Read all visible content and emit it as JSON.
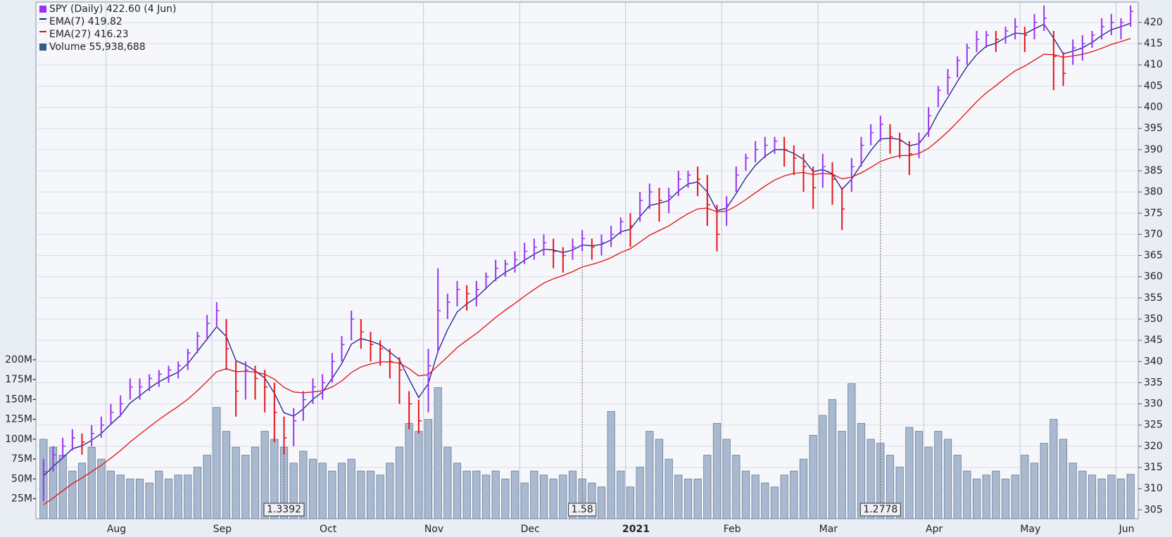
{
  "chart_data": {
    "type": "ohlc",
    "legend": [
      "SPY (Daily) 422.60 (4 Jun)",
      "EMA(7) 419.82",
      "EMA(27) 416.23",
      "Volume 55,938,688"
    ],
    "categories": [
      null,
      null,
      null,
      null,
      null,
      null,
      null,
      "Aug",
      null,
      null,
      null,
      null,
      null,
      null,
      null,
      null,
      null,
      null,
      "Sep",
      null,
      null,
      null,
      null,
      null,
      null,
      null,
      null,
      null,
      null,
      "Oct",
      null,
      null,
      null,
      null,
      null,
      null,
      null,
      null,
      null,
      null,
      "Nov",
      null,
      null,
      null,
      null,
      null,
      null,
      null,
      null,
      null,
      "Dec",
      null,
      null,
      null,
      null,
      null,
      null,
      null,
      null,
      null,
      null,
      "2021",
      null,
      null,
      null,
      null,
      null,
      null,
      null,
      null,
      null,
      "Feb",
      null,
      null,
      null,
      null,
      null,
      null,
      null,
      null,
      null,
      "Mar",
      null,
      null,
      null,
      null,
      null,
      null,
      null,
      null,
      null,
      null,
      "Apr",
      null,
      null,
      null,
      null,
      null,
      null,
      null,
      null,
      null,
      "May",
      null,
      null,
      null,
      null,
      null,
      null,
      null,
      null,
      null,
      "Jun",
      null
    ],
    "high": [
      317,
      320,
      322,
      324,
      323,
      325,
      327,
      330,
      332,
      336,
      336,
      337,
      338,
      339,
      340,
      343,
      347,
      351,
      354,
      350,
      340,
      340,
      339,
      338,
      335,
      327,
      329,
      333,
      336,
      337,
      342,
      346,
      352,
      350,
      347,
      345,
      343,
      341,
      333,
      331,
      343,
      362,
      356,
      359,
      358,
      359,
      361,
      364,
      364,
      366,
      368,
      369,
      370,
      369,
      367,
      369,
      371,
      369,
      370,
      372,
      374,
      375,
      380,
      382,
      381,
      381,
      385,
      385,
      386,
      384,
      377,
      379,
      386,
      389,
      392,
      393,
      393,
      393,
      391,
      389,
      386,
      389,
      387,
      381,
      388,
      393,
      396,
      398,
      396,
      394,
      392,
      394,
      400,
      405,
      409,
      412,
      415,
      418,
      418,
      418,
      419,
      421,
      419,
      422,
      424,
      418,
      413,
      416,
      417,
      418,
      421,
      422,
      421,
      424
    ],
    "low": [
      307,
      314,
      317,
      319,
      318,
      320,
      322,
      325,
      327,
      331,
      331,
      333,
      334,
      335,
      336,
      338,
      342,
      345,
      348,
      338,
      327,
      331,
      331,
      328,
      321,
      318,
      320,
      326,
      330,
      331,
      335,
      340,
      345,
      343,
      340,
      339,
      336,
      330,
      324,
      323,
      328,
      342,
      350,
      353,
      352,
      353,
      357,
      359,
      360,
      361,
      363,
      364,
      365,
      362,
      361,
      364,
      366,
      364,
      365,
      367,
      370,
      367,
      373,
      376,
      373,
      375,
      379,
      381,
      379,
      372,
      366,
      372,
      380,
      385,
      387,
      388,
      389,
      386,
      384,
      380,
      376,
      381,
      377,
      371,
      380,
      386,
      391,
      392,
      389,
      388,
      384,
      388,
      393,
      400,
      403,
      407,
      410,
      413,
      414,
      413,
      415,
      416,
      413,
      416,
      418,
      404,
      405,
      410,
      411,
      414,
      416,
      417,
      416,
      419
    ],
    "close": [
      314,
      318,
      320,
      322,
      321,
      323,
      325,
      328,
      330,
      334,
      334,
      336,
      337,
      338,
      339,
      342,
      346,
      349,
      352,
      343,
      333,
      338,
      336,
      334,
      328,
      322,
      326,
      331,
      334,
      335,
      340,
      344,
      350,
      347,
      344,
      343,
      340,
      338,
      330,
      326,
      339,
      352,
      354,
      357,
      356,
      357,
      360,
      362,
      363,
      364,
      366,
      367,
      368,
      366,
      365,
      367,
      369,
      367,
      368,
      370,
      373,
      372,
      378,
      380,
      378,
      379,
      383,
      384,
      383,
      377,
      370,
      377,
      384,
      388,
      390,
      391,
      392,
      390,
      388,
      386,
      381,
      386,
      383,
      376,
      386,
      391,
      394,
      396,
      393,
      392,
      389,
      392,
      398,
      404,
      407,
      411,
      414,
      416,
      417,
      416,
      418,
      419,
      417,
      420,
      421,
      412,
      408,
      414,
      415,
      417,
      419,
      420,
      420,
      422.6
    ],
    "up_color": "#9a33f0",
    "down_color": "#e3141b",
    "series": [
      {
        "color": "#1b1b8f",
        "values": [
          313,
          315.2,
          317.3,
          319.4,
          320.1,
          321.4,
          323.0,
          325.2,
          327.3,
          330.2,
          331.9,
          333.7,
          335.2,
          336.4,
          337.5,
          339.5,
          342.4,
          345.3,
          348.2,
          345.9,
          340.2,
          339.2,
          337.8,
          336.1,
          332.5,
          327.9,
          327.1,
          328.8,
          331.1,
          332.8,
          336.0,
          339.5,
          344.1,
          345.4,
          344.8,
          344.0,
          342.2,
          340.4,
          335.8,
          331.5,
          334.8,
          342.4,
          347.5,
          351.7,
          353.6,
          355.1,
          357.3,
          359.4,
          361.0,
          362.3,
          363.9,
          365.3,
          366.5,
          366.3,
          365.7,
          366.3,
          367.5,
          367.3,
          367.6,
          368.7,
          370.6,
          371.2,
          374.2,
          376.8,
          377.3,
          378.0,
          380.2,
          381.9,
          382.4,
          380.0,
          375.6,
          376.2,
          379.6,
          383.3,
          386.3,
          388.4,
          390.0,
          390.0,
          389.1,
          387.7,
          384.8,
          385.3,
          384.3,
          380.6,
          383.0,
          386.5,
          389.8,
          392.5,
          392.7,
          392.4,
          390.9,
          391.4,
          394.3,
          398.6,
          402.3,
          406.1,
          409.6,
          412.4,
          414.4,
          415.1,
          416.4,
          417.5,
          417.3,
          418.5,
          419.6,
          416.3,
          412.6,
          413.2,
          414.0,
          415.3,
          416.9,
          418.3,
          419.0,
          419.82
        ]
      },
      {
        "color": "#e01010",
        "values": [
          306.2,
          307.8,
          309.5,
          311.2,
          312.5,
          314.0,
          315.5,
          317.2,
          319.0,
          321.0,
          322.8,
          324.6,
          326.3,
          327.9,
          329.4,
          331.1,
          333.1,
          335.3,
          337.6,
          338.3,
          337.6,
          337.7,
          337.5,
          337.0,
          335.8,
          333.9,
          332.8,
          332.6,
          332.8,
          333.1,
          334.0,
          335.4,
          337.4,
          338.7,
          339.4,
          339.9,
          339.9,
          339.6,
          338.3,
          336.6,
          336.9,
          339.0,
          341.1,
          343.3,
          345.0,
          346.6,
          348.5,
          350.4,
          352.1,
          353.7,
          355.4,
          357.0,
          358.5,
          359.5,
          360.3,
          361.2,
          362.3,
          362.9,
          363.6,
          364.5,
          365.7,
          366.6,
          368.2,
          369.8,
          370.9,
          372.0,
          373.5,
          374.9,
          376.0,
          376.2,
          375.3,
          375.5,
          376.7,
          378.2,
          379.8,
          381.4,
          382.8,
          383.8,
          384.4,
          384.6,
          384.1,
          384.4,
          384.2,
          383.1,
          383.5,
          384.5,
          385.8,
          387.2,
          388.0,
          388.6,
          388.6,
          389.1,
          390.3,
          392.2,
          394.2,
          396.5,
          398.9,
          401.3,
          403.4,
          405.1,
          406.9,
          408.6,
          409.7,
          411.1,
          412.5,
          412.4,
          411.8,
          412.1,
          412.5,
          413.1,
          413.9,
          414.8,
          415.5,
          416.23
        ]
      }
    ],
    "volume": {
      "color": "#a9b9d0",
      "ylim": [
        0,
        650000000
      ],
      "yticks": [
        {
          "value": 25000000,
          "label": "25M-"
        },
        {
          "value": 50000000,
          "label": "50M-"
        },
        {
          "value": 75000000,
          "label": "75M-"
        },
        {
          "value": 100000000,
          "label": "100M-"
        },
        {
          "value": 125000000,
          "label": "125M-"
        },
        {
          "value": 150000000,
          "label": "150M-"
        },
        {
          "value": 175000000,
          "label": "175M-"
        },
        {
          "value": 200000000,
          "label": "200M-"
        }
      ],
      "values": [
        100000000,
        90000000,
        80000000,
        60000000,
        70000000,
        90000000,
        75000000,
        60000000,
        55000000,
        50000000,
        50000000,
        45000000,
        60000000,
        50000000,
        55000000,
        55000000,
        65000000,
        80000000,
        140000000,
        110000000,
        90000000,
        80000000,
        90000000,
        110000000,
        100000000,
        90000000,
        70000000,
        85000000,
        75000000,
        70000000,
        60000000,
        70000000,
        75000000,
        60000000,
        60000000,
        55000000,
        70000000,
        90000000,
        120000000,
        110000000,
        125000000,
        165000000,
        90000000,
        70000000,
        60000000,
        60000000,
        55000000,
        60000000,
        50000000,
        60000000,
        45000000,
        60000000,
        55000000,
        50000000,
        55000000,
        60000000,
        50000000,
        45000000,
        40000000,
        135000000,
        60000000,
        40000000,
        65000000,
        110000000,
        100000000,
        75000000,
        55000000,
        50000000,
        50000000,
        80000000,
        120000000,
        100000000,
        80000000,
        60000000,
        55000000,
        45000000,
        40000000,
        55000000,
        60000000,
        75000000,
        105000000,
        130000000,
        150000000,
        110000000,
        170000000,
        120000000,
        100000000,
        95000000,
        80000000,
        65000000,
        115000000,
        110000000,
        90000000,
        110000000,
        100000000,
        80000000,
        60000000,
        50000000,
        55000000,
        60000000,
        50000000,
        55000000,
        80000000,
        70000000,
        95000000,
        125000000,
        100000000,
        70000000,
        60000000,
        55000000,
        50000000,
        55000000,
        50000000,
        55938688
      ]
    },
    "ylim": [
      302.9,
      424.8
    ],
    "yticks": [
      305,
      310,
      315,
      320,
      325,
      330,
      335,
      340,
      345,
      350,
      355,
      360,
      365,
      370,
      375,
      380,
      385,
      390,
      395,
      400,
      405,
      410,
      415,
      420
    ],
    "annotations": [
      "1.3392",
      "1.58",
      "1.2778"
    ],
    "grid": true
  }
}
